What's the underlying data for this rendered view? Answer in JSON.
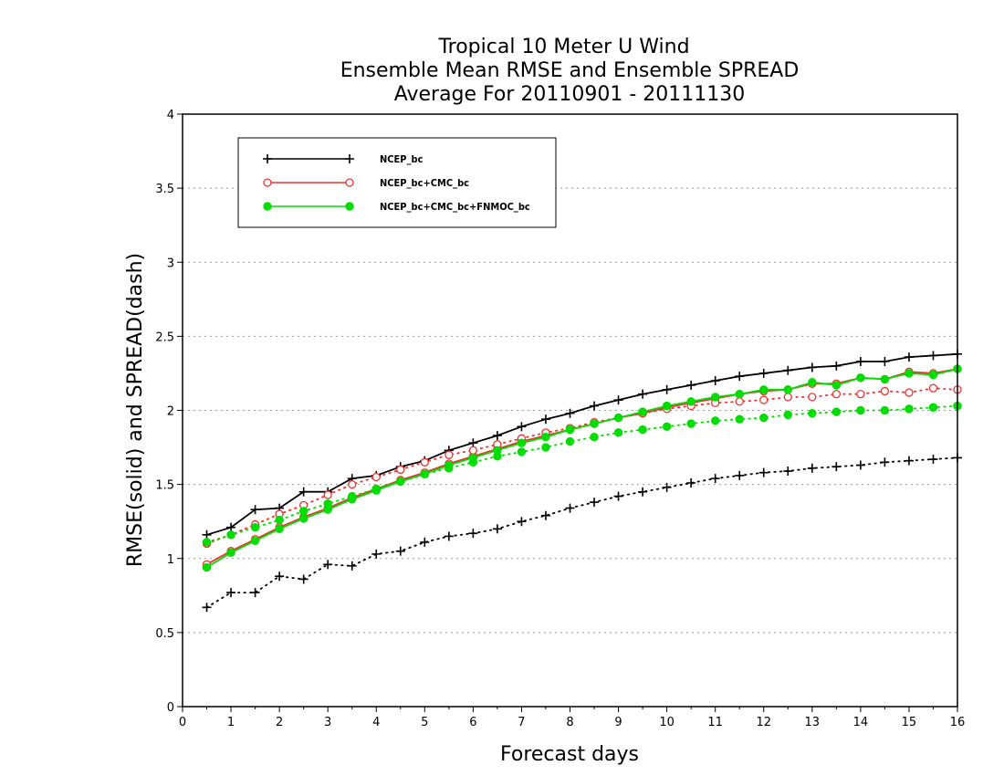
{
  "chart_data": {
    "type": "line",
    "title": [
      "Tropical 10 Meter U Wind",
      "Ensemble Mean RMSE and Ensemble SPREAD",
      "Average For 20110901 - 20111130"
    ],
    "xlabel": "Forecast days",
    "ylabel": "RMSE(solid) and SPREAD(dash)",
    "xlim": [
      0,
      16
    ],
    "ylim": [
      0,
      4
    ],
    "xticks": [
      0,
      1,
      2,
      3,
      4,
      5,
      6,
      7,
      8,
      9,
      10,
      11,
      12,
      13,
      14,
      15,
      16
    ],
    "yticks": [
      0,
      0.5,
      1,
      1.5,
      2,
      2.5,
      3,
      3.5,
      4
    ],
    "ytick_labels": [
      "0",
      "0.5",
      "1",
      "1.5",
      "2",
      "2.5",
      "3",
      "3.5",
      "4"
    ],
    "grid": "horizontal dotted",
    "legend_position": "top-left",
    "x": [
      0.5,
      1,
      1.5,
      2,
      2.5,
      3,
      3.5,
      4,
      4.5,
      5,
      5.5,
      6,
      6.5,
      7,
      7.5,
      8,
      8.5,
      9,
      9.5,
      10,
      10.5,
      11,
      11.5,
      12,
      12.5,
      13,
      13.5,
      14,
      14.5,
      15,
      15.5,
      16
    ],
    "series": [
      {
        "name": "NCEP_bc",
        "color": "#000000",
        "marker": "plus",
        "rmse": [
          1.16,
          1.21,
          1.33,
          1.34,
          1.45,
          1.45,
          1.54,
          1.56,
          1.62,
          1.66,
          1.73,
          1.78,
          1.83,
          1.89,
          1.94,
          1.98,
          2.03,
          2.07,
          2.11,
          2.14,
          2.17,
          2.2,
          2.23,
          2.25,
          2.27,
          2.29,
          2.3,
          2.33,
          2.33,
          2.36,
          2.37,
          2.38
        ],
        "spread": [
          0.67,
          0.77,
          0.77,
          0.88,
          0.86,
          0.96,
          0.95,
          1.03,
          1.05,
          1.11,
          1.15,
          1.17,
          1.2,
          1.25,
          1.29,
          1.34,
          1.38,
          1.42,
          1.45,
          1.48,
          1.51,
          1.54,
          1.56,
          1.58,
          1.59,
          1.61,
          1.62,
          1.63,
          1.65,
          1.66,
          1.67,
          1.68
        ]
      },
      {
        "name": "NCEP_bc+CMC_bc",
        "color": "#ee3333",
        "marker": "open-circle",
        "rmse": [
          0.96,
          1.05,
          1.13,
          1.21,
          1.28,
          1.34,
          1.41,
          1.47,
          1.53,
          1.58,
          1.64,
          1.69,
          1.74,
          1.79,
          1.83,
          1.87,
          1.91,
          1.95,
          1.98,
          2.02,
          2.05,
          2.08,
          2.11,
          2.13,
          2.14,
          2.18,
          2.18,
          2.22,
          2.21,
          2.26,
          2.25,
          2.28
        ],
        "spread": [
          1.1,
          1.16,
          1.23,
          1.3,
          1.36,
          1.43,
          1.5,
          1.55,
          1.6,
          1.65,
          1.7,
          1.73,
          1.77,
          1.81,
          1.85,
          1.88,
          1.92,
          1.95,
          1.98,
          2.01,
          2.03,
          2.05,
          2.06,
          2.07,
          2.09,
          2.09,
          2.11,
          2.11,
          2.13,
          2.12,
          2.15,
          2.14
        ]
      },
      {
        "name": "NCEP_bc+CMC_bc+FNMOC_bc",
        "color": "#00dd00",
        "marker": "filled-circle",
        "rmse": [
          0.94,
          1.04,
          1.12,
          1.2,
          1.27,
          1.33,
          1.4,
          1.46,
          1.52,
          1.57,
          1.63,
          1.68,
          1.73,
          1.78,
          1.82,
          1.87,
          1.91,
          1.95,
          1.99,
          2.03,
          2.06,
          2.09,
          2.11,
          2.14,
          2.14,
          2.19,
          2.17,
          2.22,
          2.21,
          2.25,
          2.24,
          2.28
        ],
        "spread": [
          1.11,
          1.16,
          1.21,
          1.26,
          1.32,
          1.37,
          1.42,
          1.47,
          1.52,
          1.57,
          1.61,
          1.65,
          1.69,
          1.72,
          1.75,
          1.79,
          1.82,
          1.85,
          1.87,
          1.89,
          1.91,
          1.93,
          1.94,
          1.95,
          1.97,
          1.98,
          1.99,
          2.0,
          2.0,
          2.01,
          2.02,
          2.03
        ]
      }
    ]
  }
}
